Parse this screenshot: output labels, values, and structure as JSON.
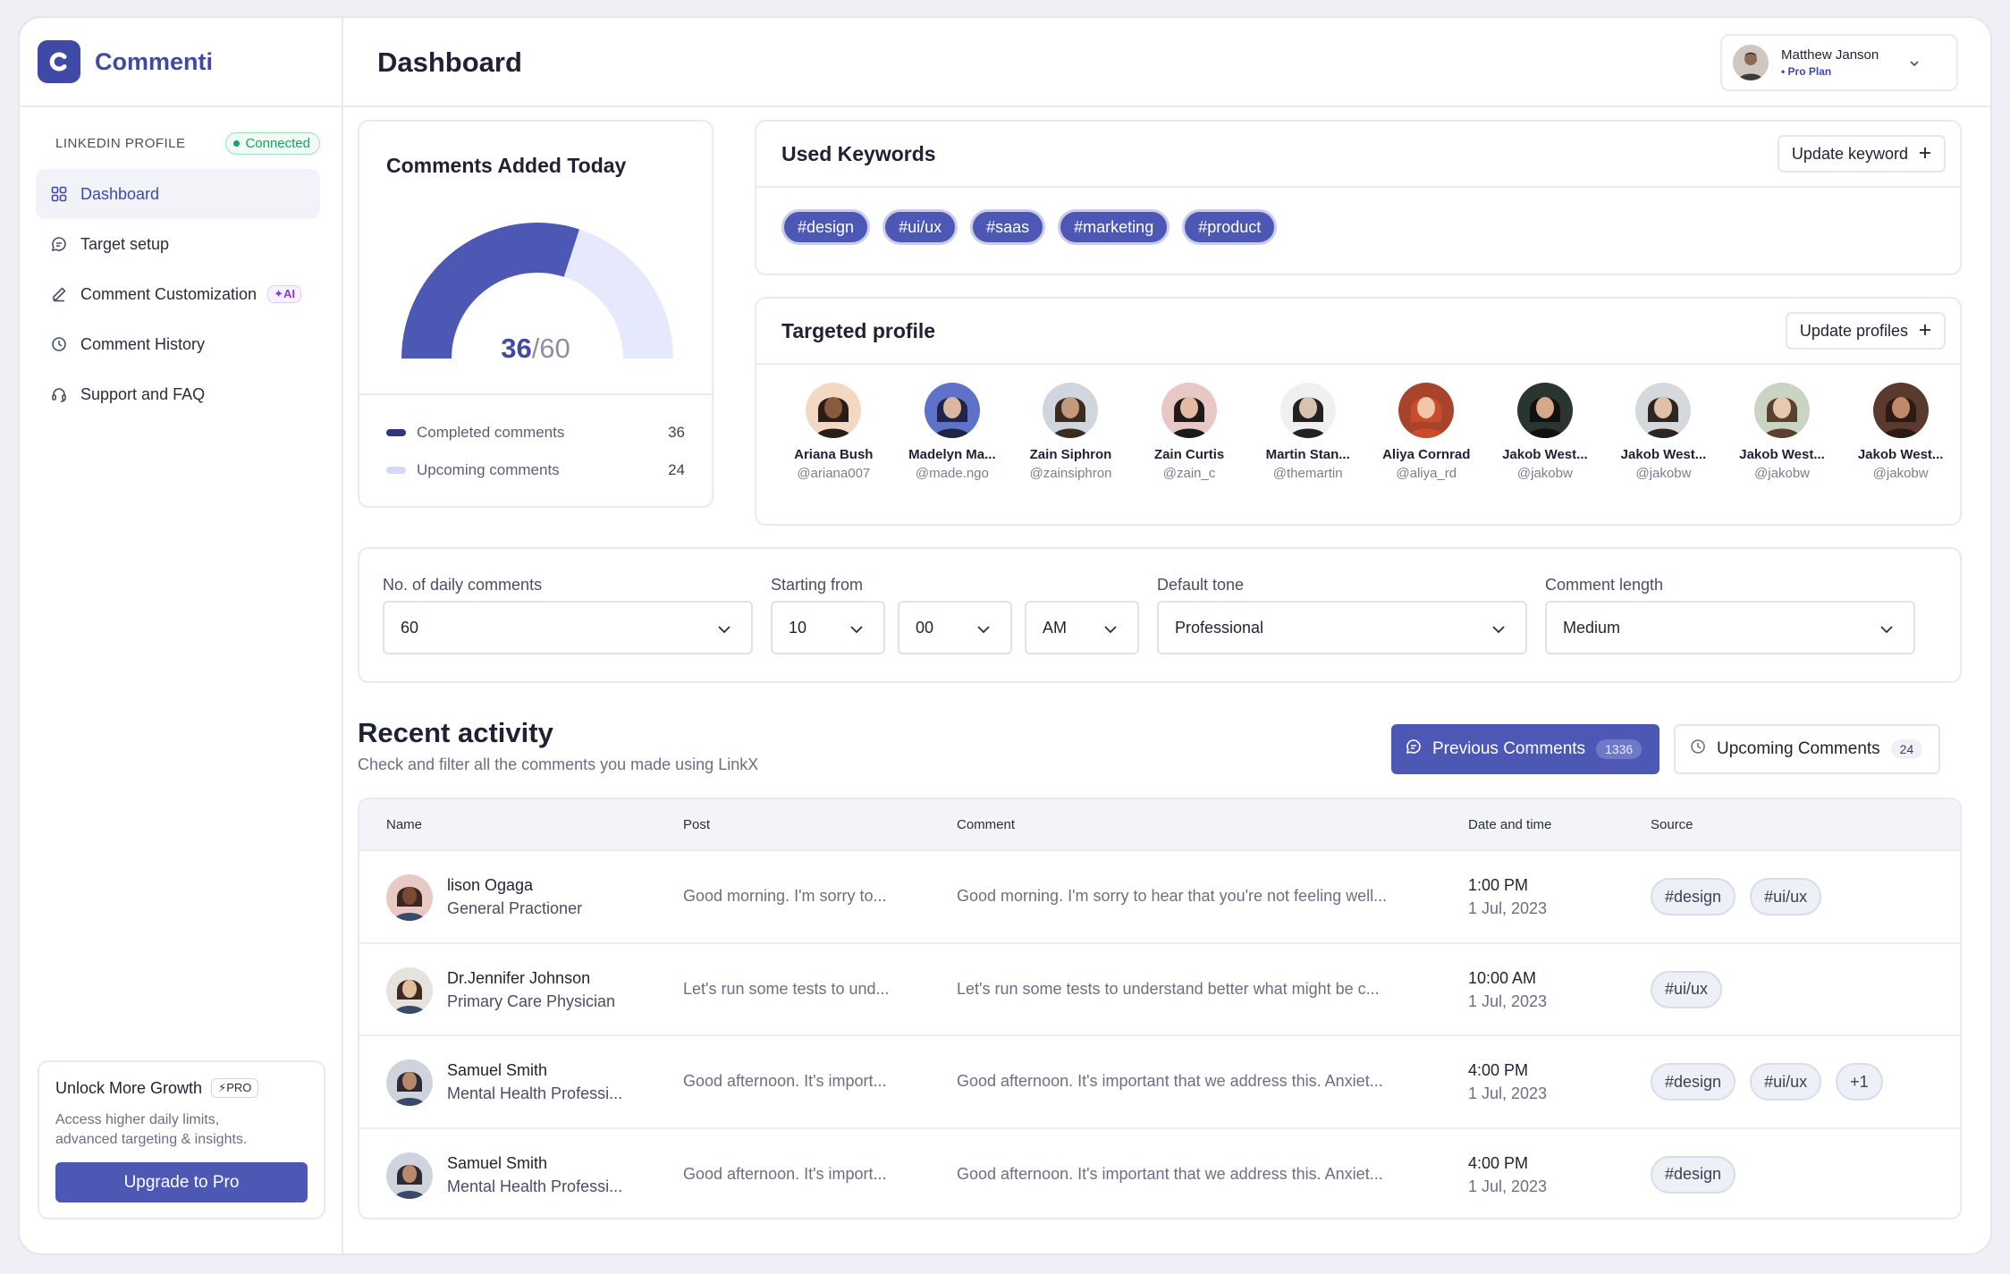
{
  "brand": {
    "name": "Commenti"
  },
  "sidebar": {
    "linkedin_label": "LINKEDIN PROFILE",
    "status": "Connected",
    "items": [
      {
        "label": "Dashboard",
        "icon": "grid-icon",
        "active": true
      },
      {
        "label": "Target setup",
        "icon": "chat-icon"
      },
      {
        "label": "Comment Customization",
        "icon": "pen-icon",
        "badge": "AI"
      },
      {
        "label": "Comment History",
        "icon": "clock-icon"
      },
      {
        "label": "Support and FAQ",
        "icon": "headset-icon"
      }
    ],
    "upgrade": {
      "title": "Unlock More Growth",
      "badge": "PRO",
      "desc_line1": "Access higher daily limits,",
      "desc_line2": "advanced targeting & insights.",
      "button": "Upgrade to Pro"
    }
  },
  "header": {
    "title": "Dashboard",
    "user": {
      "name": "Matthew Janson",
      "plan": "Pro Plan"
    }
  },
  "gauge": {
    "title": "Comments Added Today",
    "done": "36",
    "total": "/60",
    "completed_label": "Completed comments",
    "completed_value": "36",
    "upcoming_label": "Upcoming comments",
    "upcoming_value": "24",
    "fraction": 0.6,
    "colors": {
      "done": "#4d58b5",
      "rest": "#e6e8fb"
    }
  },
  "keywords": {
    "title": "Used Keywords",
    "button": "Update keyword",
    "items": [
      "#design",
      "#ui/ux",
      "#saas",
      "#marketing",
      "#product"
    ]
  },
  "targeted": {
    "title": "Targeted profile",
    "button": "Update profiles",
    "profiles": [
      {
        "name": "Ariana Bush",
        "handle": "@ariana007"
      },
      {
        "name": "Madelyn Ma...",
        "handle": "@made.ngo"
      },
      {
        "name": "Zain Siphron",
        "handle": "@zainsiphron"
      },
      {
        "name": "Zain Curtis",
        "handle": "@zain_c"
      },
      {
        "name": "Martin Stan...",
        "handle": "@themartin"
      },
      {
        "name": "Aliya Cornrad",
        "handle": "@aliya_rd"
      },
      {
        "name": "Jakob West...",
        "handle": "@jakobw"
      },
      {
        "name": "Jakob West...",
        "handle": "@jakobw"
      },
      {
        "name": "Jakob West...",
        "handle": "@jakobw"
      },
      {
        "name": "Jakob West...",
        "handle": "@jakobw"
      }
    ]
  },
  "settings": {
    "daily": {
      "label": "No. of daily comments",
      "value": "60"
    },
    "start": {
      "label": "Starting from",
      "hour": "10",
      "minute": "00",
      "ampm": "AM"
    },
    "tone": {
      "label": "Default tone",
      "value": "Professional"
    },
    "length": {
      "label": "Comment length",
      "value": "Medium"
    }
  },
  "activity": {
    "title": "Recent activity",
    "subtitle": "Check and filter all the comments you made using LinkX",
    "prev_label": "Previous Comments",
    "prev_count": "1336",
    "up_label": "Upcoming Comments",
    "up_count": "24",
    "columns": {
      "name": "Name",
      "post": "Post",
      "comment": "Comment",
      "date": "Date and time",
      "source": "Source"
    },
    "rows": [
      {
        "name": "lison Ogaga",
        "role": "General Practioner",
        "post": "Good morning. I'm sorry to...",
        "comment": "Good morning. I'm sorry to hear that you're not feeling well...",
        "time": "1:00 PM",
        "date": "1 Jul, 2023",
        "tags": [
          "#design",
          "#ui/ux"
        ]
      },
      {
        "name": "Dr.Jennifer Johnson",
        "role": "Primary Care Physician",
        "post": "Let's run some tests to und...",
        "comment": "Let's run some tests to understand better what might be c...",
        "time": "10:00 AM",
        "date": "1 Jul, 2023",
        "tags": [
          "#ui/ux"
        ]
      },
      {
        "name": "Samuel Smith",
        "role": "Mental Health Professi...",
        "post": "Good afternoon. It's import...",
        "comment": "Good afternoon. It's important that we address this. Anxiet...",
        "time": "4:00 PM",
        "date": "1 Jul, 2023",
        "tags": [
          "#design",
          "#ui/ux",
          "+1"
        ]
      },
      {
        "name": "Samuel Smith",
        "role": "Mental Health Professi...",
        "post": "Good afternoon. It's import...",
        "comment": "Good afternoon. It's important that we address this. Anxiet...",
        "time": "4:00 PM",
        "date": "1 Jul, 2023",
        "tags": [
          "#design"
        ]
      }
    ]
  }
}
